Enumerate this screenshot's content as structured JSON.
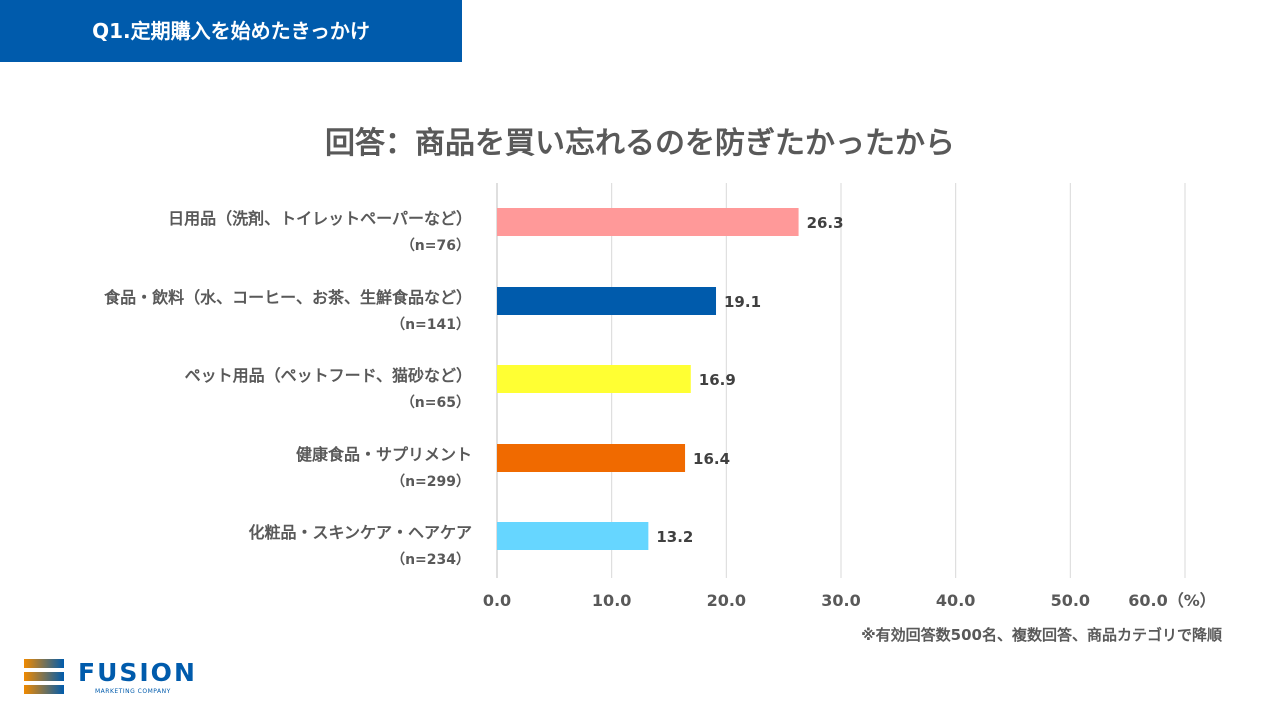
{
  "header": {
    "title": "Q1.定期購入を始めたきっかけ"
  },
  "chart_data": {
    "type": "bar",
    "orientation": "horizontal",
    "title": "回答：商品を買い忘れるのを防ぎたかったから",
    "categories": [
      "日用品（洗剤、トイレットペーパーなど）",
      "食品・飲料（水、コーヒー、お茶、生鮮食品など）",
      "ペット用品（ペットフード、猫砂など）",
      "健康食品・サプリメント",
      "化粧品・スキンケア・ヘアケア"
    ],
    "n_labels": [
      "（n=76）",
      "（n=141）",
      "（n=65）",
      "（n=299）",
      "（n=234）"
    ],
    "values": [
      26.3,
      19.1,
      16.9,
      16.4,
      13.2
    ],
    "value_labels": [
      "26.3",
      "19.1",
      "16.9",
      "16.4",
      "13.2"
    ],
    "colors": [
      "#FF9999",
      "#005BAC",
      "#FFFF33",
      "#F06A00",
      "#66D6FF"
    ],
    "xlim": [
      0,
      60
    ],
    "xticks": [
      "0.0",
      "10.0",
      "20.0",
      "30.0",
      "40.0",
      "50.0",
      "60.0（%）"
    ],
    "grid": true
  },
  "note": "※有効回答数500名、複数回答、商品カテゴリで降順",
  "logo": {
    "name": "FUSION",
    "tagline": "MARKETING COMPANY"
  }
}
